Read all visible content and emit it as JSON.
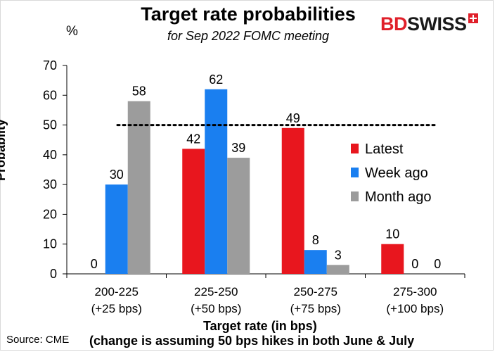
{
  "header": {
    "title": "Target rate probabilities",
    "subtitle": "for Sep 2022 FOMC meeting",
    "unit": "%",
    "logo_bd": "BD",
    "logo_swiss": "SWISS",
    "logo_icon": "plus-icon"
  },
  "footer": {
    "source": "Source: CME",
    "note": "(change is assuming 50 bps hikes in both June & July"
  },
  "colors": {
    "latest": "#e8161e",
    "week_ago": "#1a7ff0",
    "month_ago": "#9c9c9c",
    "brand_red": "#e0202a"
  },
  "chart_data": {
    "type": "bar",
    "title": "Target rate probabilities",
    "subtitle": "for Sep 2022 FOMC meeting",
    "xlabel": "Target rate (in bps)",
    "ylabel": "Probablity",
    "ylim": [
      0,
      70
    ],
    "yticks": [
      "0",
      "10",
      "20",
      "30",
      "40",
      "50",
      "60",
      "70"
    ],
    "categories": [
      [
        "200-225",
        "(+25 bps)"
      ],
      [
        "225-250",
        "(+50 bps)"
      ],
      [
        "250-275",
        "(+75 bps)"
      ],
      [
        "275-300",
        "(+100 bps)"
      ]
    ],
    "series": [
      {
        "name": "Latest",
        "color": "#e8161e",
        "values": [
          0,
          42,
          49,
          10
        ],
        "labels": [
          "0",
          "42",
          "49",
          "10"
        ]
      },
      {
        "name": "Week ago",
        "color": "#1a7ff0",
        "values": [
          30,
          62,
          8,
          0
        ],
        "labels": [
          "30",
          "62",
          "8",
          "0"
        ]
      },
      {
        "name": "Month ago",
        "color": "#9c9c9c",
        "values": [
          58,
          39,
          3,
          0
        ],
        "labels": [
          "58",
          "39",
          "3",
          "0"
        ]
      }
    ],
    "reference_line": {
      "value": 50,
      "style": "dotted"
    },
    "legend_position": "right",
    "grid": false
  }
}
